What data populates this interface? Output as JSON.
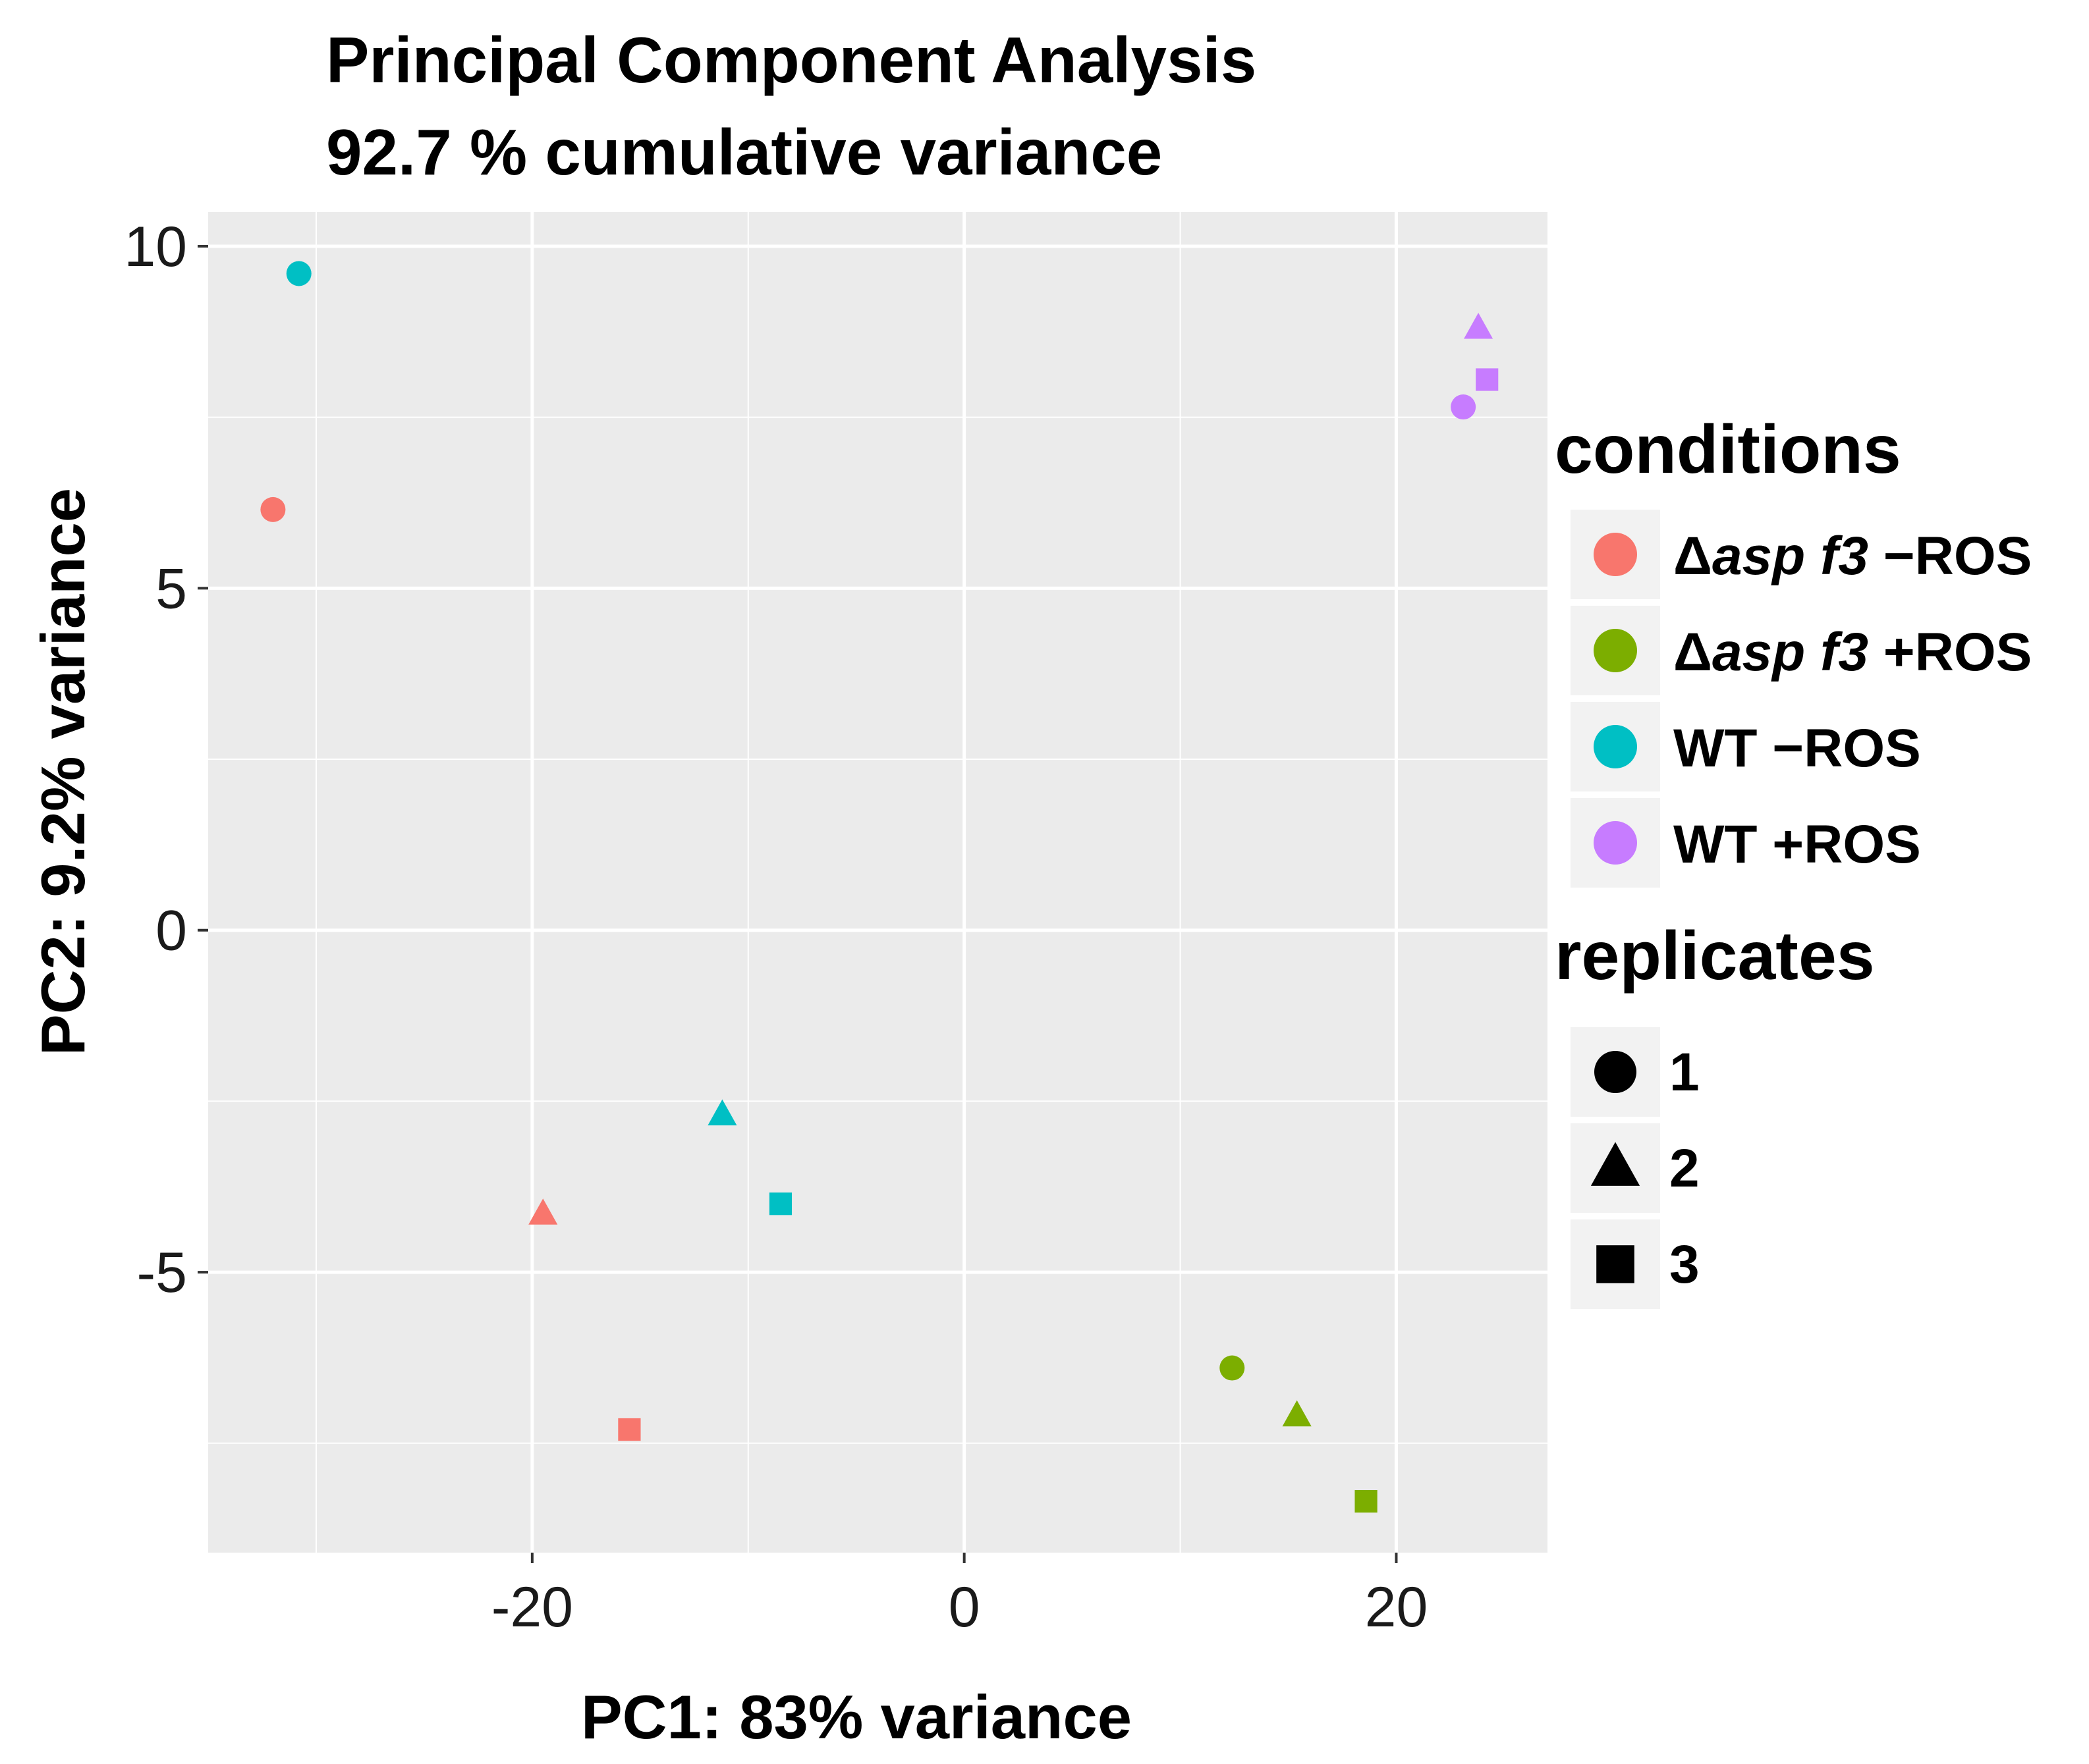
{
  "chart_data": {
    "type": "scatter",
    "title": "Principal Component Analysis",
    "subtitle": "92.7 % cumulative variance",
    "xlabel": "PC1: 83% variance",
    "ylabel": "PC2: 9.2% variance",
    "xlim": [
      -35,
      27
    ],
    "ylim": [
      -9.1,
      10.5
    ],
    "xticks": [
      -20,
      0,
      20
    ],
    "yticks": [
      10,
      5,
      0,
      -5
    ],
    "xtick_labels": [
      "-20",
      "0",
      "20"
    ],
    "ytick_labels": [
      "10",
      "5",
      "0",
      "-5"
    ],
    "grid": true,
    "legend_conditions_title": "conditions",
    "legend_replicates_title": "replicates",
    "conditions": [
      {
        "prefix": "Δ",
        "italic": "asp f3",
        "suffix": " −ROS",
        "color": "#F8766D"
      },
      {
        "prefix": "Δ",
        "italic": "asp f3",
        "suffix": " +ROS",
        "color": "#7CAE00"
      },
      {
        "prefix": "",
        "italic": "",
        "suffix": "WT −ROS",
        "color": "#00BFC4"
      },
      {
        "prefix": "",
        "italic": "",
        "suffix": "WT +ROS",
        "color": "#C77CFF"
      }
    ],
    "replicates": [
      {
        "label": "1",
        "shape": "circle"
      },
      {
        "label": "2",
        "shape": "triangle"
      },
      {
        "label": "3",
        "shape": "square"
      }
    ],
    "points": [
      {
        "condition": 0,
        "replicate": 1,
        "x": -32.0,
        "y": 6.15
      },
      {
        "condition": 0,
        "replicate": 2,
        "x": -19.5,
        "y": -4.15
      },
      {
        "condition": 0,
        "replicate": 3,
        "x": -15.5,
        "y": -7.3
      },
      {
        "condition": 1,
        "replicate": 1,
        "x": 12.4,
        "y": -6.4
      },
      {
        "condition": 1,
        "replicate": 2,
        "x": 15.4,
        "y": -7.1
      },
      {
        "condition": 1,
        "replicate": 3,
        "x": 18.6,
        "y": -8.35
      },
      {
        "condition": 2,
        "replicate": 1,
        "x": -30.8,
        "y": 9.6
      },
      {
        "condition": 2,
        "replicate": 2,
        "x": -11.2,
        "y": -2.7
      },
      {
        "condition": 2,
        "replicate": 3,
        "x": -8.5,
        "y": -4.0
      },
      {
        "condition": 3,
        "replicate": 1,
        "x": 23.1,
        "y": 7.65
      },
      {
        "condition": 3,
        "replicate": 2,
        "x": 23.8,
        "y": 8.8
      },
      {
        "condition": 3,
        "replicate": 3,
        "x": 24.2,
        "y": 8.05
      }
    ]
  }
}
